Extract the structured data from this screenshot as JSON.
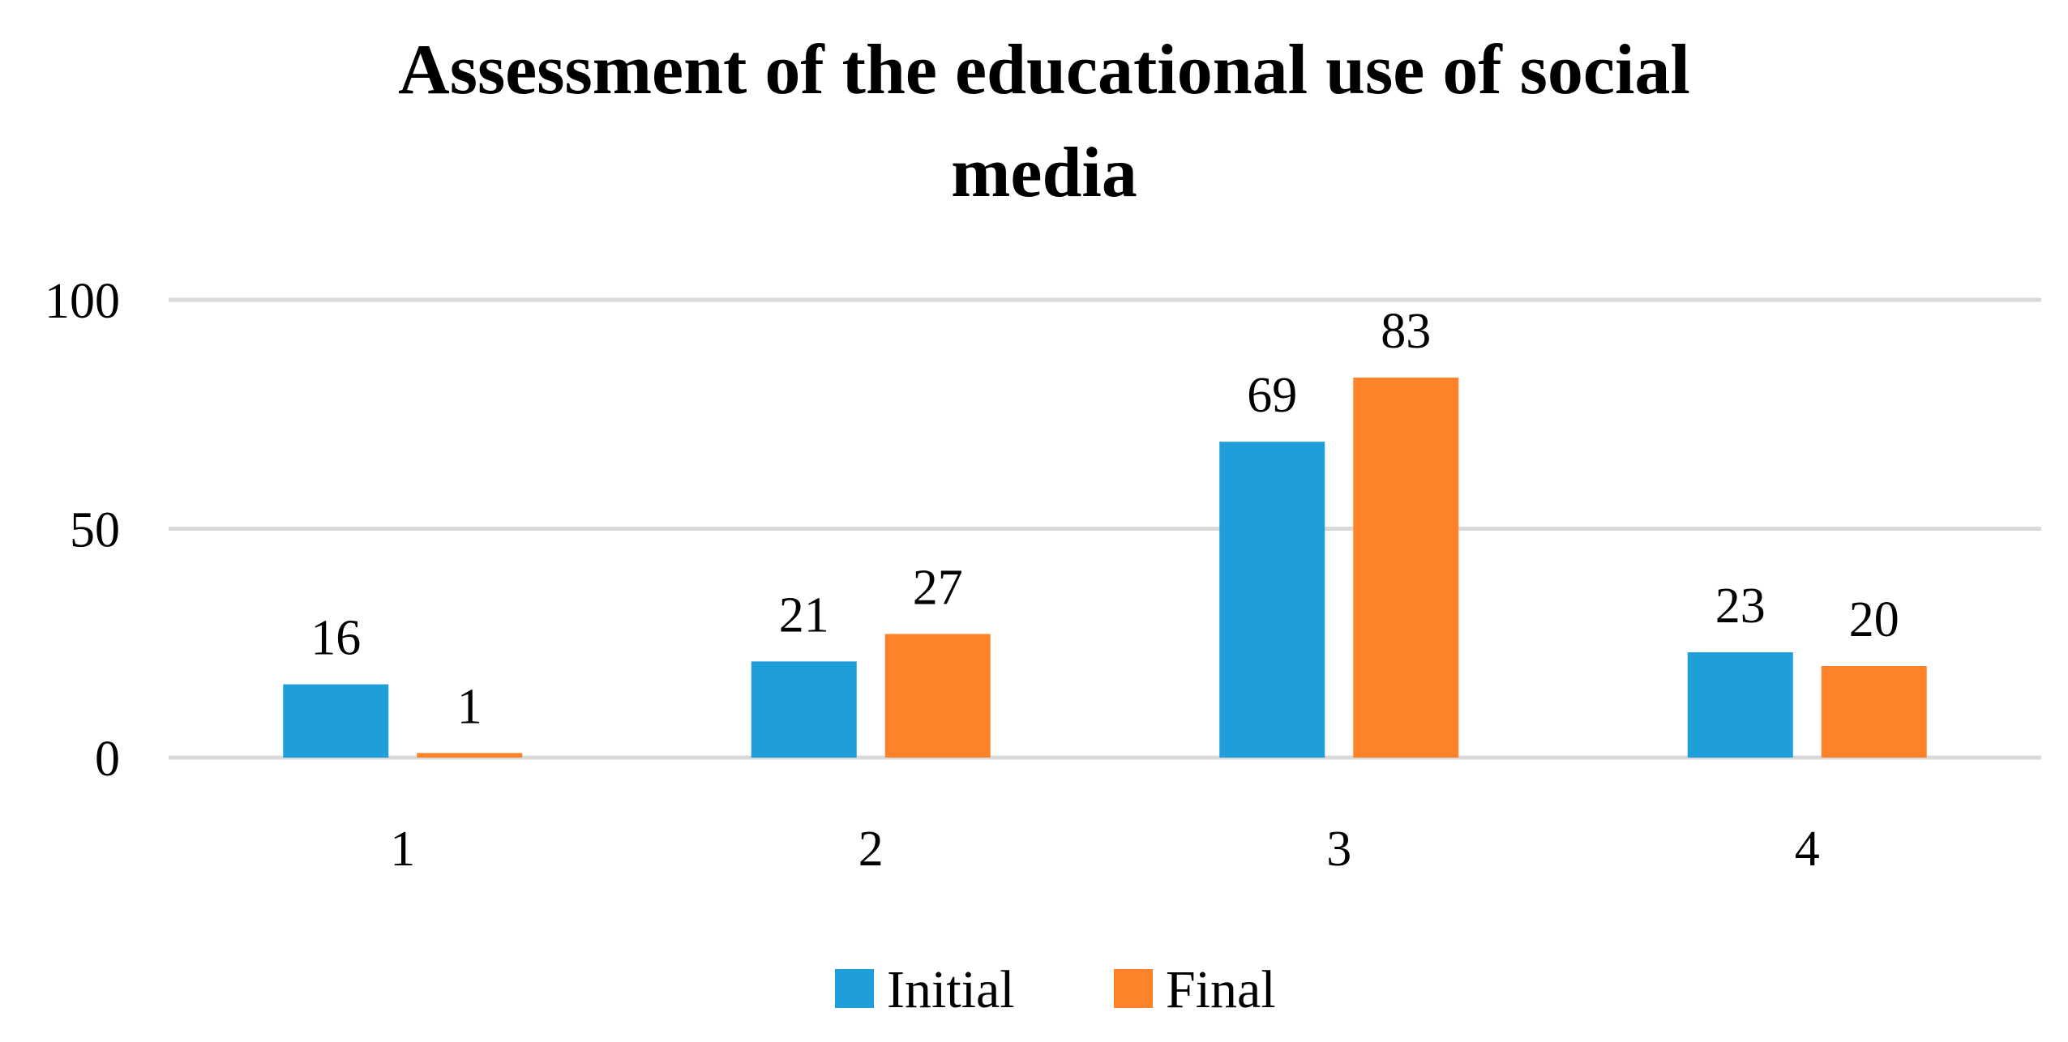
{
  "chart_data": {
    "type": "bar",
    "title_lines": [
      "Assessment of the educational use of social",
      "media"
    ],
    "xlabel": "",
    "ylabel": "",
    "categories": [
      "1",
      "2",
      "3",
      "4"
    ],
    "series": [
      {
        "name": "Initial",
        "color": "#1f9fda",
        "values": [
          16,
          21,
          69,
          23
        ]
      },
      {
        "name": "Final",
        "color": "#fe8229",
        "values": [
          1,
          27,
          83,
          20
        ]
      }
    ],
    "yticks": [
      "0",
      "50",
      "100"
    ],
    "ylim": [
      0,
      100
    ],
    "grid": true,
    "legend_position": "bottom"
  }
}
